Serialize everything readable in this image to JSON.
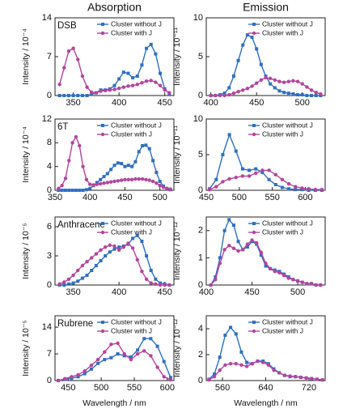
{
  "chart_data": [
    {
      "type": "line",
      "title": "Absorption",
      "panel_label": "DSB",
      "ylabel": "Intensity / 10⁻⁴",
      "xlim": [
        330,
        460
      ],
      "xticks": [
        350,
        400,
        450
      ],
      "ylim": [
        0,
        14
      ],
      "yticks": [
        0,
        7,
        14
      ],
      "x": [
        335,
        340,
        345,
        350,
        355,
        360,
        365,
        370,
        375,
        380,
        385,
        390,
        395,
        400,
        405,
        410,
        415,
        420,
        425,
        430,
        435,
        440,
        445,
        450,
        455
      ],
      "series": [
        {
          "name": "Cluster without J",
          "color": "#2f6fc0",
          "marker": "square",
          "values": [
            0,
            0,
            0,
            0,
            0,
            0,
            0,
            0.2,
            0.5,
            1,
            1,
            1.2,
            1.8,
            3,
            4.2,
            4,
            3.2,
            3.5,
            5.5,
            8.5,
            9.2,
            7.5,
            4,
            1.2,
            0.3
          ]
        },
        {
          "name": "Cluster with J",
          "color": "#b4449c",
          "marker": "circle",
          "values": [
            2,
            5,
            8,
            8.5,
            6.5,
            3.5,
            1.5,
            0.6,
            0.5,
            0.8,
            0.9,
            1,
            1.1,
            1.3,
            1.5,
            1.7,
            1.8,
            2,
            2.3,
            2.6,
            2.7,
            2.4,
            1.8,
            1,
            0.5
          ]
        }
      ]
    },
    {
      "type": "line",
      "title": "Emission",
      "ylabel": "Intensity / 10⁻¹¹",
      "xlim": [
        395,
        525
      ],
      "xticks": [
        400,
        450,
        500
      ],
      "ylim": [
        0,
        10
      ],
      "yticks": [
        0,
        5,
        10
      ],
      "x": [
        400,
        405,
        410,
        415,
        420,
        425,
        430,
        435,
        440,
        445,
        450,
        455,
        460,
        465,
        470,
        475,
        480,
        485,
        490,
        495,
        500,
        505,
        510,
        515,
        520
      ],
      "series": [
        {
          "name": "Cluster without J",
          "color": "#2f6fc0",
          "marker": "square",
          "values": [
            0,
            0,
            0.1,
            0.3,
            1,
            2.5,
            4.5,
            6.5,
            7.8,
            7.5,
            6,
            4,
            2.5,
            1.5,
            1,
            0.6,
            0.4,
            0.3,
            0.2,
            0.1,
            0.1,
            0,
            0,
            0,
            0
          ]
        },
        {
          "name": "Cluster with J",
          "color": "#b4449c",
          "marker": "circle",
          "values": [
            0,
            0,
            0,
            0,
            0.1,
            0.3,
            0.5,
            0.7,
            0.9,
            1.2,
            1.6,
            2,
            2.3,
            2.2,
            2,
            1.8,
            1.7,
            1.8,
            1.9,
            1.8,
            1.5,
            1.1,
            0.7,
            0.4,
            0.2
          ]
        }
      ]
    },
    {
      "type": "line",
      "panel_label": "6T",
      "ylabel": "Intensity / 10⁻⁴",
      "xlim": [
        350,
        520
      ],
      "xticks": [
        350,
        400,
        450,
        500
      ],
      "ylim": [
        0,
        12
      ],
      "yticks": [
        0,
        4,
        8,
        12
      ],
      "x": [
        355,
        360,
        365,
        370,
        375,
        380,
        385,
        390,
        395,
        400,
        405,
        410,
        415,
        420,
        425,
        430,
        435,
        440,
        445,
        450,
        455,
        460,
        465,
        470,
        475,
        480,
        485,
        490,
        495,
        500,
        505,
        510,
        515
      ],
      "series": [
        {
          "name": "Cluster without J",
          "color": "#2f6fc0",
          "marker": "square",
          "values": [
            0,
            0,
            0,
            0,
            0,
            0,
            0,
            0,
            0.1,
            0.3,
            0.8,
            1.3,
            1.8,
            2.3,
            2.8,
            3.5,
            4.2,
            4.6,
            4.5,
            4,
            4.2,
            4,
            4.8,
            6.5,
            7.5,
            7.6,
            7,
            5,
            3,
            1.5,
            0.7,
            0.3,
            0.1
          ]
        },
        {
          "name": "Cluster with J",
          "color": "#b4449c",
          "marker": "circle",
          "values": [
            0.3,
            0.8,
            2,
            5,
            8,
            9,
            7.5,
            4,
            1.8,
            1,
            0.9,
            1,
            1.1,
            1.2,
            1.3,
            1.4,
            1.5,
            1.6,
            1.7,
            1.8,
            1.8,
            1.8,
            1.9,
            1.9,
            1.9,
            1.8,
            1.7,
            1.5,
            1.2,
            0.8,
            0.5,
            0.3,
            0.2
          ]
        }
      ]
    },
    {
      "type": "line",
      "ylabel": "Intensity / 10⁻¹¹",
      "xlim": [
        450,
        630
      ],
      "xticks": [
        450,
        500,
        550,
        600
      ],
      "ylim": [
        0,
        10
      ],
      "yticks": [
        0,
        5,
        10
      ],
      "x": [
        455,
        465,
        475,
        485,
        495,
        505,
        515,
        525,
        535,
        545,
        555,
        565,
        575,
        585,
        595,
        605,
        615,
        625
      ],
      "series": [
        {
          "name": "Cluster without J",
          "color": "#2f6fc0",
          "marker": "square",
          "values": [
            0.2,
            1.5,
            5,
            7.8,
            5.5,
            3,
            2.8,
            3,
            2.5,
            1.5,
            0.8,
            0.4,
            0.2,
            0.1,
            0.1,
            0,
            0,
            0
          ]
        },
        {
          "name": "Cluster with J",
          "color": "#b4449c",
          "marker": "circle",
          "values": [
            0.1,
            0.5,
            1.2,
            1.6,
            1.8,
            2,
            2,
            2.4,
            2.8,
            2.8,
            2.2,
            1.5,
            0.9,
            0.5,
            0.3,
            0.2,
            0.1,
            0.1
          ]
        }
      ]
    },
    {
      "type": "line",
      "panel_label": "Anthracene",
      "ylabel": "Intensity / 10⁻⁵",
      "xlim": [
        330,
        460
      ],
      "xticks": [
        350,
        400,
        450
      ],
      "ylim": [
        0,
        7
      ],
      "yticks": [
        0,
        3,
        6
      ],
      "x": [
        335,
        340,
        345,
        350,
        355,
        360,
        365,
        370,
        375,
        380,
        385,
        390,
        395,
        400,
        405,
        410,
        415,
        420,
        425,
        430,
        435,
        440,
        445,
        450,
        455
      ],
      "series": [
        {
          "name": "Cluster without J",
          "color": "#2f6fc0",
          "marker": "square",
          "values": [
            0,
            0,
            0.1,
            0.2,
            0.4,
            0.7,
            1,
            1.5,
            2,
            2.5,
            3,
            3.4,
            3.7,
            3.9,
            4,
            4.2,
            4.8,
            5.1,
            4.5,
            3,
            1.5,
            0.6,
            0.2,
            0.1,
            0
          ]
        },
        {
          "name": "Cluster with J",
          "color": "#b4449c",
          "marker": "circle",
          "values": [
            0.1,
            0.3,
            0.6,
            1,
            1.5,
            2,
            2.4,
            2.8,
            3.2,
            3.6,
            3.9,
            4.1,
            4,
            3.6,
            3.9,
            4.3,
            3.8,
            2.6,
            1.4,
            0.6,
            0.2,
            0.1,
            0,
            0,
            0
          ]
        }
      ]
    },
    {
      "type": "line",
      "ylabel": "Intensity / 10⁻¹²",
      "xlim": [
        400,
        530
      ],
      "xticks": [
        400,
        450,
        500
      ],
      "ylim": [
        0,
        2.5
      ],
      "yticks": [
        0,
        1,
        2
      ],
      "x": [
        405,
        410,
        415,
        420,
        425,
        430,
        435,
        440,
        445,
        450,
        455,
        460,
        465,
        470,
        475,
        480,
        485,
        490,
        495,
        500,
        505,
        510,
        515,
        520,
        525
      ],
      "series": [
        {
          "name": "Cluster without J",
          "color": "#2f6fc0",
          "marker": "square",
          "values": [
            0,
            0.3,
            1,
            2,
            2.4,
            2.2,
            1.6,
            1.3,
            1.4,
            1.6,
            1.5,
            1.1,
            0.7,
            0.6,
            0.55,
            0.5,
            0.4,
            0.3,
            0.2,
            0.15,
            0.1,
            0.05,
            0.05,
            0,
            0
          ]
        },
        {
          "name": "Cluster with J",
          "color": "#b4449c",
          "marker": "circle",
          "values": [
            0,
            0.2,
            0.8,
            1.3,
            1.45,
            1.35,
            1.25,
            1.3,
            1.5,
            1.65,
            1.55,
            1.2,
            0.8,
            0.6,
            0.5,
            0.45,
            0.35,
            0.25,
            0.2,
            0.15,
            0.1,
            0.05,
            0.05,
            0,
            0
          ]
        }
      ]
    },
    {
      "type": "line",
      "panel_label": "Rubrene",
      "ylabel": "Intensity / 10⁻⁵",
      "xlabel": "Wavelength / nm",
      "xlim": [
        430,
        610
      ],
      "xticks": [
        450,
        500,
        550,
        600
      ],
      "ylim": [
        0,
        17
      ],
      "yticks": [
        0,
        7,
        14
      ],
      "x": [
        435,
        445,
        455,
        465,
        475,
        485,
        495,
        505,
        515,
        525,
        535,
        545,
        555,
        565,
        575,
        585,
        595,
        605
      ],
      "series": [
        {
          "name": "Cluster without J",
          "color": "#2f6fc0",
          "marker": "square",
          "values": [
            0,
            0.3,
            0.6,
            1,
            1.8,
            3,
            4.5,
            5.5,
            6,
            7,
            6.5,
            6.2,
            8,
            11,
            11,
            9,
            5,
            0.8
          ]
        },
        {
          "name": "Cluster with J",
          "color": "#b4449c",
          "marker": "circle",
          "values": [
            0,
            0.5,
            1,
            1.5,
            2.5,
            4,
            5.5,
            7.5,
            9.5,
            9.8,
            7,
            5.5,
            7,
            7.8,
            6.5,
            3.5,
            1,
            0.2
          ]
        }
      ]
    },
    {
      "type": "line",
      "ylabel": "Intensity / 10⁻¹²",
      "xlabel": "Wavelength / nm",
      "xlim": [
        530,
        750
      ],
      "xticks": [
        560,
        640,
        720
      ],
      "ylim": [
        0,
        5
      ],
      "yticks": [
        0,
        2,
        4
      ],
      "x": [
        535,
        545,
        555,
        565,
        575,
        585,
        595,
        605,
        615,
        625,
        635,
        645,
        655,
        665,
        675,
        685,
        695,
        705,
        715,
        725,
        735,
        745
      ],
      "series": [
        {
          "name": "Cluster without J",
          "color": "#2f6fc0",
          "marker": "square",
          "values": [
            0.1,
            0.5,
            1.8,
            3.5,
            4.1,
            3.6,
            2.2,
            1.4,
            1.3,
            1.5,
            1.5,
            1.3,
            0.9,
            0.6,
            0.4,
            0.3,
            0.3,
            0.25,
            0.2,
            0.15,
            0.1,
            0.05
          ]
        },
        {
          "name": "Cluster with J",
          "color": "#b4449c",
          "marker": "circle",
          "values": [
            0.05,
            0.3,
            0.8,
            1.2,
            1.3,
            1.3,
            1.2,
            1.1,
            1.3,
            1.5,
            1.4,
            1.2,
            0.8,
            0.6,
            0.4,
            0.35,
            0.3,
            0.25,
            0.2,
            0.15,
            0.1,
            0.05
          ]
        }
      ]
    }
  ]
}
